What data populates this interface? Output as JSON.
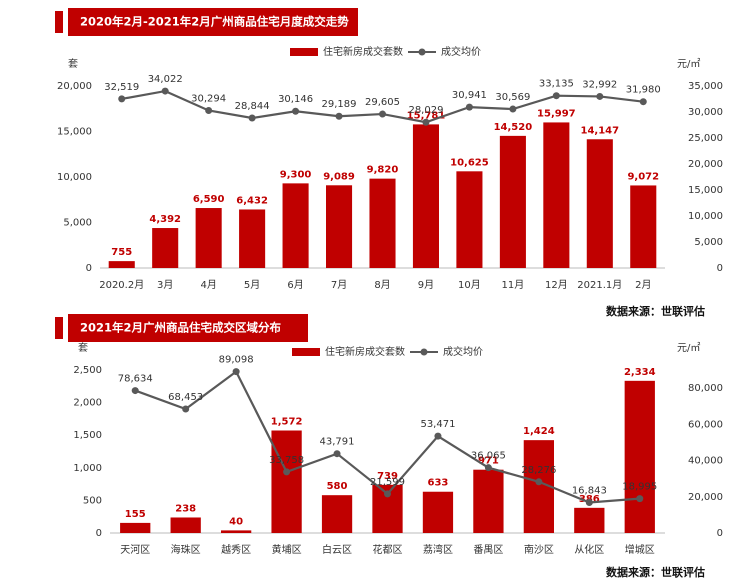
{
  "chart_data": [
    {
      "type": "bar-line",
      "title": "2020年2月-2021年2月广州商品住宅月度成交走势",
      "y_label": "套",
      "y2_label": "元/㎡",
      "source": "数据来源：世联评估",
      "categories": [
        "2020.2月",
        "3月",
        "4月",
        "5月",
        "6月",
        "7月",
        "8月",
        "9月",
        "10月",
        "11月",
        "12月",
        "2021.1月",
        "2月"
      ],
      "series": [
        {
          "name": "住宅新房成交套数",
          "type": "bar",
          "color": "#c00000",
          "values": [
            755,
            4392,
            6590,
            6432,
            9300,
            9089,
            9820,
            15781,
            10625,
            14520,
            15997,
            14147,
            9072
          ],
          "value_labels": [
            "755",
            "4,392",
            "6,590",
            "6,432",
            "9,300",
            "9,089",
            "9,820",
            "15,781",
            "10,625",
            "14,520",
            "15,997",
            "14,147",
            "9,072"
          ]
        },
        {
          "name": "成交均价",
          "type": "line",
          "color": "#595959",
          "axis": "y2",
          "values": [
            32519,
            34022,
            30294,
            28844,
            30146,
            29189,
            29605,
            28029,
            30941,
            30569,
            33135,
            32992,
            31980
          ],
          "value_labels": [
            "32,519",
            "34,022",
            "30,294",
            "28,844",
            "30,146",
            "29,189",
            "29,605",
            "28,029",
            "30,941",
            "30,569",
            "33,135",
            "32,992",
            "31,980"
          ]
        }
      ],
      "ylim": [
        0,
        20000
      ],
      "yticks": [
        0,
        {
          "value": 5000,
          "label": "5,000"
        },
        {
          "value": 10000,
          "label": "10,000"
        },
        {
          "value": 15000,
          "label": "15,000"
        },
        {
          "value": 20000,
          "label": "20,000"
        }
      ],
      "y2lim": [
        0,
        35000
      ],
      "y2ticks": [
        0,
        {
          "value": 5000,
          "label": "5,000"
        },
        {
          "value": 10000,
          "label": "10,000"
        },
        {
          "value": 15000,
          "label": "15,000"
        },
        {
          "value": 20000,
          "label": "20,000"
        },
        {
          "value": 25000,
          "label": "25,000"
        },
        {
          "value": 30000,
          "label": "30,000"
        },
        {
          "value": 35000,
          "label": "35,000"
        }
      ]
    },
    {
      "type": "bar-line",
      "title": "2021年2月广州商品住宅成交区域分布",
      "y_label": "套",
      "y2_label": "元/㎡",
      "source": "数据来源：世联评估",
      "categories": [
        "天河区",
        "海珠区",
        "越秀区",
        "黄埔区",
        "白云区",
        "花都区",
        "荔湾区",
        "番禺区",
        "南沙区",
        "从化区",
        "增城区"
      ],
      "series": [
        {
          "name": "住宅新房成交套数",
          "type": "bar",
          "color": "#c00000",
          "values": [
            155,
            238,
            40,
            1572,
            580,
            739,
            633,
            971,
            1424,
            386,
            2334
          ],
          "value_labels": [
            "155",
            "238",
            "40",
            "1,572",
            "580",
            "739",
            "633",
            "971",
            "1,424",
            "386",
            "2,334"
          ]
        },
        {
          "name": "成交均价",
          "type": "line",
          "color": "#595959",
          "axis": "y2",
          "values": [
            78634,
            68453,
            89098,
            33758,
            43791,
            21599,
            53471,
            36065,
            28276,
            16843,
            18995
          ],
          "value_labels": [
            "78,634",
            "68,453",
            "89,098",
            "33,758",
            "43,791",
            "21,599",
            "53,471",
            "36,065",
            "28,276",
            "16,843",
            "18,995"
          ]
        }
      ],
      "ylim": [
        0,
        2500
      ],
      "yticks": [
        0,
        500,
        {
          "value": 1000,
          "label": "1,000"
        },
        {
          "value": 1500,
          "label": "1,500"
        },
        {
          "value": 2000,
          "label": "2,000"
        },
        {
          "value": 2500,
          "label": "2,500"
        }
      ],
      "y2lim": [
        0,
        90000
      ],
      "y2ticks": [
        0,
        {
          "value": 20000,
          "label": "20,000"
        },
        {
          "value": 40000,
          "label": "40,000"
        },
        {
          "value": 60000,
          "label": "60,000"
        },
        {
          "value": 80000,
          "label": "80,000"
        }
      ]
    }
  ]
}
